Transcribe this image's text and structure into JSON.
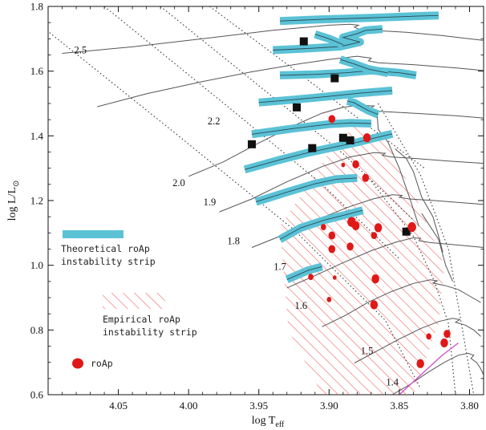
{
  "chart_data": {
    "type": "scatter",
    "xlabel": "log T",
    "xlabel_sub": "eff",
    "ylabel": "log L/L",
    "ylabel_sub": "⊙",
    "xlim": [
      4.1,
      3.79
    ],
    "ylim": [
      0.6,
      1.8
    ],
    "x_reversed": true,
    "grid": false,
    "x_ticks": [
      4.05,
      4.0,
      3.95,
      3.9,
      3.85,
      3.8
    ],
    "x_tick_labels": [
      "4.05",
      "4.00",
      "3.95",
      "3.90",
      "3.85",
      "3.80"
    ],
    "y_ticks": [
      0.6,
      0.8,
      1.0,
      1.2,
      1.4,
      1.6,
      1.8
    ],
    "y_tick_labels": [
      "0.6",
      "0.8",
      "1.0",
      "1.2",
      "1.4",
      "1.6",
      "1.8"
    ],
    "colors": {
      "theoretical_strip": "#5bc2d6",
      "empirical_hatch": "#f07878",
      "roap": "#e01818",
      "squares": "#111111",
      "tracks": "#555555",
      "iso_lines": "#333333",
      "zams_segment": "#cc55cc"
    },
    "legend": {
      "theoretical": [
        "Theoretical roAp",
        "instability strip"
      ],
      "empirical": [
        "Empirical roAp",
        "instability strip"
      ],
      "roap": "roAp"
    },
    "mass_labels": [
      {
        "text": "2.5",
        "x": 4.077,
        "y": 1.655
      },
      {
        "text": "2.2",
        "x": 3.982,
        "y": 1.435
      },
      {
        "text": "2.0",
        "x": 4.007,
        "y": 1.245
      },
      {
        "text": "1.9",
        "x": 3.985,
        "y": 1.185
      },
      {
        "text": "1.8",
        "x": 3.968,
        "y": 1.065
      },
      {
        "text": "1.7",
        "x": 3.935,
        "y": 0.985
      },
      {
        "text": "1.6",
        "x": 3.92,
        "y": 0.865
      },
      {
        "text": "1.5",
        "x": 3.873,
        "y": 0.725
      },
      {
        "text": "1.4",
        "x": 3.855,
        "y": 0.628
      }
    ],
    "theoretical_strip_segments": [
      [
        [
          3.935,
          1.755
        ],
        [
          3.905,
          1.76
        ],
        [
          3.875,
          1.764
        ],
        [
          3.862,
          1.766
        ],
        [
          3.838,
          1.77
        ],
        [
          3.822,
          1.772
        ]
      ],
      [
        [
          3.94,
          1.665
        ],
        [
          3.915,
          1.67
        ],
        [
          3.892,
          1.676
        ],
        [
          3.878,
          1.69
        ],
        [
          3.89,
          1.704
        ],
        [
          3.88,
          1.716
        ],
        [
          3.874,
          1.726
        ],
        [
          3.862,
          1.73
        ]
      ],
      [
        [
          3.935,
          1.587
        ],
        [
          3.91,
          1.59
        ],
        [
          3.888,
          1.595
        ],
        [
          3.87,
          1.602
        ],
        [
          3.85,
          1.595
        ],
        [
          3.838,
          1.587
        ]
      ],
      [
        [
          3.95,
          1.503
        ],
        [
          3.925,
          1.512
        ],
        [
          3.9,
          1.522
        ],
        [
          3.878,
          1.532
        ],
        [
          3.855,
          1.54
        ]
      ],
      [
        [
          3.955,
          1.405
        ],
        [
          3.925,
          1.423
        ],
        [
          3.9,
          1.436
        ],
        [
          3.885,
          1.44
        ],
        [
          3.87,
          1.438
        ]
      ],
      [
        [
          3.96,
          1.296
        ],
        [
          3.935,
          1.326
        ],
        [
          3.915,
          1.348
        ],
        [
          3.9,
          1.362
        ],
        [
          3.88,
          1.38
        ],
        [
          3.865,
          1.396
        ],
        [
          3.855,
          1.406
        ]
      ],
      [
        [
          3.952,
          1.196
        ],
        [
          3.93,
          1.226
        ],
        [
          3.91,
          1.252
        ],
        [
          3.895,
          1.266
        ],
        [
          3.88,
          1.27
        ]
      ],
      [
        [
          3.935,
          1.08
        ],
        [
          3.92,
          1.116
        ],
        [
          3.903,
          1.14
        ],
        [
          3.888,
          1.156
        ],
        [
          3.876,
          1.17
        ]
      ],
      [
        [
          3.93,
          0.956
        ],
        [
          3.915,
          0.984
        ],
        [
          3.905,
          0.996
        ]
      ],
      [
        [
          3.887,
          1.508
        ],
        [
          3.882,
          1.502
        ],
        [
          3.878,
          1.492
        ],
        [
          3.872,
          1.478
        ],
        [
          3.865,
          1.466
        ]
      ],
      [
        [
          3.892,
          1.636
        ],
        [
          3.882,
          1.622
        ],
        [
          3.872,
          1.606
        ],
        [
          3.858,
          1.594
        ]
      ],
      [
        [
          3.91,
          1.714
        ],
        [
          3.9,
          1.7
        ],
        [
          3.89,
          1.682
        ]
      ]
    ],
    "empirical_strip_polygon": [
      [
        3.88,
        1.44
      ],
      [
        3.858,
        1.37
      ],
      [
        3.838,
        1.21
      ],
      [
        3.818,
        1.0
      ],
      [
        3.822,
        0.82
      ],
      [
        3.84,
        0.6
      ],
      [
        3.905,
        0.6
      ],
      [
        3.929,
        0.8
      ],
      [
        3.935,
        1.12
      ],
      [
        3.898,
        1.36
      ]
    ],
    "evolutionary_tracks": [
      [
        [
          4.09,
          1.655
        ],
        [
          4.04,
          1.675
        ],
        [
          3.99,
          1.7
        ],
        [
          3.94,
          1.726
        ],
        [
          3.9,
          1.742
        ],
        [
          3.885,
          1.745
        ],
        [
          3.879,
          1.742
        ],
        [
          3.882,
          1.736
        ],
        [
          3.878,
          1.728
        ],
        [
          3.87,
          1.726
        ],
        [
          3.845,
          1.72
        ],
        [
          3.82,
          1.71
        ],
        [
          3.79,
          1.695
        ]
      ],
      [
        [
          4.065,
          1.49
        ],
        [
          4.03,
          1.53
        ],
        [
          3.99,
          1.568
        ],
        [
          3.955,
          1.598
        ],
        [
          3.925,
          1.62
        ],
        [
          3.9,
          1.636
        ],
        [
          3.88,
          1.646
        ],
        [
          3.87,
          1.64
        ],
        [
          3.872,
          1.632
        ],
        [
          3.865,
          1.626
        ],
        [
          3.84,
          1.62
        ],
        [
          3.81,
          1.61
        ],
        [
          3.79,
          1.602
        ]
      ],
      [
        [
          4.0,
          1.275
        ],
        [
          3.975,
          1.32
        ],
        [
          3.95,
          1.378
        ],
        [
          3.925,
          1.432
        ],
        [
          3.905,
          1.47
        ],
        [
          3.89,
          1.488
        ],
        [
          3.878,
          1.495
        ],
        [
          3.868,
          1.492
        ],
        [
          3.872,
          1.482
        ],
        [
          3.865,
          1.476
        ],
        [
          3.84,
          1.47
        ],
        [
          3.81,
          1.462
        ],
        [
          3.79,
          1.455
        ]
      ],
      [
        [
          3.978,
          1.165
        ],
        [
          3.955,
          1.205
        ],
        [
          3.93,
          1.258
        ],
        [
          3.905,
          1.305
        ],
        [
          3.885,
          1.335
        ],
        [
          3.868,
          1.348
        ],
        [
          3.86,
          1.346
        ],
        [
          3.862,
          1.34
        ],
        [
          3.856,
          1.335
        ],
        [
          3.838,
          1.33
        ],
        [
          3.815,
          1.322
        ],
        [
          3.79,
          1.315
        ]
      ],
      [
        [
          3.955,
          1.055
        ],
        [
          3.932,
          1.095
        ],
        [
          3.908,
          1.142
        ],
        [
          3.885,
          1.182
        ],
        [
          3.868,
          1.206
        ],
        [
          3.855,
          1.218
        ],
        [
          3.848,
          1.216
        ],
        [
          3.85,
          1.21
        ],
        [
          3.843,
          1.205
        ],
        [
          3.825,
          1.2
        ],
        [
          3.805,
          1.193
        ],
        [
          3.79,
          1.188
        ]
      ],
      [
        [
          3.93,
          0.93
        ],
        [
          3.91,
          0.968
        ],
        [
          3.89,
          1.008
        ],
        [
          3.87,
          1.045
        ],
        [
          3.852,
          1.072
        ],
        [
          3.84,
          1.085
        ],
        [
          3.835,
          1.083
        ],
        [
          3.836,
          1.076
        ],
        [
          3.828,
          1.07
        ],
        [
          3.812,
          1.064
        ],
        [
          3.797,
          1.058
        ],
        [
          3.79,
          1.055
        ]
      ],
      [
        [
          3.905,
          0.81
        ],
        [
          3.888,
          0.846
        ],
        [
          3.872,
          0.886
        ],
        [
          3.856,
          0.918
        ],
        [
          3.84,
          0.944
        ],
        [
          3.828,
          0.955
        ],
        [
          3.823,
          0.952
        ],
        [
          3.826,
          0.945
        ],
        [
          3.818,
          0.938
        ],
        [
          3.808,
          0.925
        ],
        [
          3.8,
          0.905
        ],
        [
          3.792,
          0.885
        ]
      ],
      [
        [
          3.882,
          0.698
        ],
        [
          3.866,
          0.735
        ],
        [
          3.85,
          0.772
        ],
        [
          3.835,
          0.804
        ],
        [
          3.822,
          0.826
        ],
        [
          3.812,
          0.836
        ],
        [
          3.807,
          0.832
        ],
        [
          3.81,
          0.824
        ],
        [
          3.803,
          0.815
        ],
        [
          3.797,
          0.8
        ],
        [
          3.792,
          0.78
        ]
      ],
      [
        [
          3.855,
          0.6
        ],
        [
          3.843,
          0.63
        ],
        [
          3.83,
          0.668
        ],
        [
          3.818,
          0.7
        ],
        [
          3.808,
          0.722
        ],
        [
          3.801,
          0.728
        ],
        [
          3.797,
          0.722
        ],
        [
          3.799,
          0.712
        ],
        [
          3.795,
          0.7
        ],
        [
          3.792,
          0.68
        ],
        [
          3.79,
          0.66
        ]
      ],
      [
        [
          3.866,
          1.48
        ],
        [
          3.865,
          1.42
        ],
        [
          3.858,
          1.38
        ],
        [
          3.85,
          1.3
        ],
        [
          3.842,
          1.2
        ],
        [
          3.836,
          1.12
        ]
      ],
      [
        [
          3.853,
          1.36
        ],
        [
          3.845,
          1.33
        ],
        [
          3.84,
          1.29
        ],
        [
          3.834,
          1.21
        ],
        [
          3.826,
          1.15
        ],
        [
          3.822,
          1.09
        ],
        [
          3.819,
          1.04
        ]
      ],
      [
        [
          3.834,
          1.16
        ],
        [
          3.828,
          1.12
        ],
        [
          3.822,
          1.08
        ],
        [
          3.817,
          1.0
        ],
        [
          3.812,
          0.95
        ]
      ]
    ],
    "mass_lines": [
      [
        [
          4.105,
          1.74
        ],
        [
          4.01,
          1.41
        ],
        [
          3.925,
          1.11
        ],
        [
          3.86,
          0.83
        ],
        [
          3.835,
          0.62
        ]
      ],
      [
        [
          4.06,
          1.8
        ],
        [
          3.972,
          1.49
        ],
        [
          3.905,
          1.25
        ],
        [
          3.85,
          1.02
        ]
      ],
      [
        [
          4.02,
          1.8
        ],
        [
          3.95,
          1.555
        ],
        [
          3.89,
          1.345
        ],
        [
          3.84,
          1.14
        ]
      ],
      [
        [
          3.985,
          1.8
        ],
        [
          3.928,
          1.615
        ],
        [
          3.875,
          1.44
        ],
        [
          3.832,
          1.3
        ]
      ],
      [
        [
          3.87,
          1.26
        ],
        [
          3.84,
          1.09
        ],
        [
          3.825,
          0.95
        ],
        [
          3.815,
          0.82
        ],
        [
          3.81,
          0.6
        ]
      ],
      [
        [
          3.865,
          1.5
        ],
        [
          3.835,
          1.28
        ],
        [
          3.815,
          1.05
        ],
        [
          3.805,
          0.8
        ],
        [
          3.797,
          0.6
        ]
      ]
    ],
    "zams_segment": [
      [
        3.85,
        0.6
      ],
      [
        3.82,
        0.72
      ],
      [
        3.808,
        0.76
      ]
    ],
    "squares": [
      {
        "x": 3.918,
        "y": 1.692
      },
      {
        "x": 3.896,
        "y": 1.578
      },
      {
        "x": 3.923,
        "y": 1.488
      },
      {
        "x": 3.89,
        "y": 1.394
      },
      {
        "x": 3.885,
        "y": 1.386
      },
      {
        "x": 3.955,
        "y": 1.374
      },
      {
        "x": 3.912,
        "y": 1.362
      },
      {
        "x": 3.845,
        "y": 1.104
      }
    ],
    "roap": [
      {
        "x": 3.898,
        "y": 1.452,
        "size": 9
      },
      {
        "x": 3.873,
        "y": 1.394,
        "size": 10
      },
      {
        "x": 3.89,
        "y": 1.31,
        "size": 5
      },
      {
        "x": 3.881,
        "y": 1.312,
        "size": 9
      },
      {
        "x": 3.874,
        "y": 1.27,
        "size": 9
      },
      {
        "x": 3.904,
        "y": 1.118,
        "size": 7
      },
      {
        "x": 3.884,
        "y": 1.134,
        "size": 11
      },
      {
        "x": 3.881,
        "y": 1.122,
        "size": 10
      },
      {
        "x": 3.898,
        "y": 1.092,
        "size": 9
      },
      {
        "x": 3.868,
        "y": 1.092,
        "size": 8
      },
      {
        "x": 3.885,
        "y": 1.058,
        "size": 9
      },
      {
        "x": 3.898,
        "y": 1.05,
        "size": 9
      },
      {
        "x": 3.865,
        "y": 1.116,
        "size": 10
      },
      {
        "x": 3.841,
        "y": 1.118,
        "size": 11
      },
      {
        "x": 3.913,
        "y": 0.964,
        "size": 7
      },
      {
        "x": 3.896,
        "y": 0.962,
        "size": 5
      },
      {
        "x": 3.867,
        "y": 0.958,
        "size": 10
      },
      {
        "x": 3.9,
        "y": 0.894,
        "size": 6
      },
      {
        "x": 3.868,
        "y": 0.878,
        "size": 10
      },
      {
        "x": 3.829,
        "y": 0.78,
        "size": 7
      },
      {
        "x": 3.816,
        "y": 0.788,
        "size": 9
      },
      {
        "x": 3.818,
        "y": 0.76,
        "size": 10
      },
      {
        "x": 3.835,
        "y": 0.696,
        "size": 10
      }
    ]
  }
}
